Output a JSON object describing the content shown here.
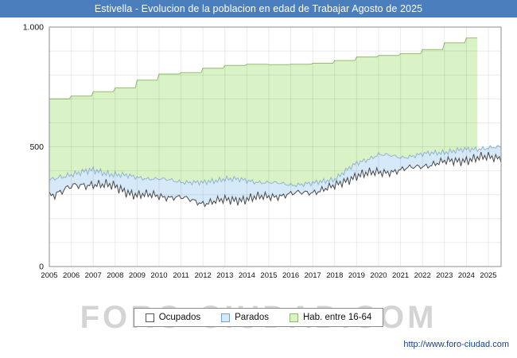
{
  "title_bar": {
    "text": "Estivella - Evolucion de la poblacion en edad de Trabajar Agosto de 2025",
    "bg": "#4a7ebd",
    "fg": "#ffffff"
  },
  "watermark": "FORO-CIUDAD.COM",
  "footer": {
    "url": "http://www.foro-ciudad.com"
  },
  "legend": {
    "items": [
      {
        "label": "Ocupados",
        "fill": "#ffffff",
        "border": "#555555"
      },
      {
        "label": "Parados",
        "fill": "#d6e9f8",
        "border": "#7aa0c4"
      },
      {
        "label": "Hab. entre 16-64",
        "fill": "#d9f2c6",
        "border": "#8fba6e"
      }
    ]
  },
  "chart_data": {
    "type": "area",
    "title": "Estivella - Evolucion de la poblacion en edad de Trabajar Agosto de 2025",
    "x_range": [
      2005,
      2025.58
    ],
    "ylim": [
      0,
      1000
    ],
    "yticks": [
      {
        "v": 0,
        "label": "0"
      },
      {
        "v": 500,
        "label": "500"
      },
      {
        "v": 1000,
        "label": "1.000"
      }
    ],
    "x_tick_years": [
      2005,
      2006,
      2007,
      2008,
      2009,
      2010,
      2011,
      2012,
      2013,
      2014,
      2015,
      2016,
      2017,
      2018,
      2019,
      2020,
      2021,
      2022,
      2023,
      2024,
      2025
    ],
    "grid": true,
    "legend_position": "bottom",
    "first_year": 2005,
    "series": [
      {
        "name": "Hab. entre 16-64",
        "step": true,
        "end_x": 2024.5,
        "fill": "#d9f2c6",
        "stroke": "#8fbf6f",
        "amp": 0,
        "seed": 0,
        "yearly": [
          700,
          712,
          730,
          746,
          778,
          804,
          810,
          828,
          840,
          845,
          843,
          845,
          849,
          860,
          875,
          881,
          889,
          906,
          934,
          954
        ]
      },
      {
        "name": "Parados (tope de banda: Ocupados + Parados)",
        "step": false,
        "fill": "#d6e9f8",
        "stroke": "#90b4d4",
        "amp": 16,
        "seed": 4.2,
        "yearly": [
          355,
          388,
          400,
          385,
          372,
          365,
          355,
          348,
          368,
          358,
          350,
          342,
          346,
          366,
          430,
          468,
          456,
          468,
          479,
          487,
          497
        ]
      },
      {
        "name": "Ocupados",
        "step": false,
        "fill": "#ffffff",
        "stroke": "#4a4a4a",
        "amp": 26,
        "seed": 1.7,
        "yearly": [
          300,
          330,
          347,
          332,
          298,
          296,
          286,
          266,
          276,
          283,
          292,
          302,
          312,
          334,
          382,
          392,
          402,
          421,
          436,
          446,
          456
        ]
      }
    ]
  }
}
